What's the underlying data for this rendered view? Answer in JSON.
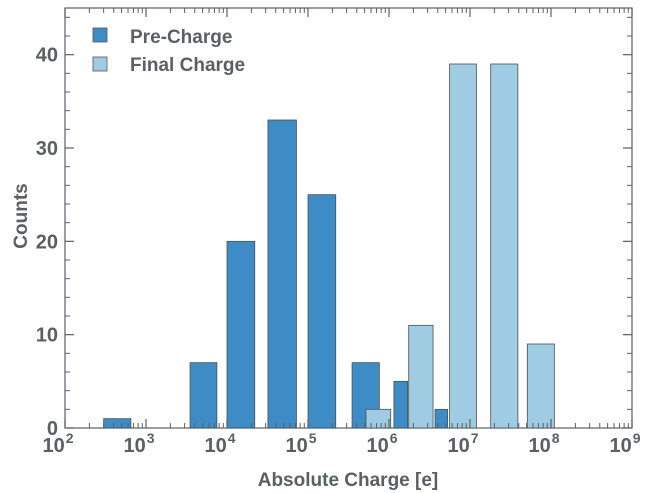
{
  "chart_data": {
    "type": "bar",
    "xscale": "log",
    "xlabel": "Absolute Charge [e]",
    "ylabel": "Counts",
    "xlim": [
      100,
      1000000000
    ],
    "ylim": [
      0,
      45
    ],
    "x_ticks": [
      {
        "base": "10",
        "exp": "2"
      },
      {
        "base": "10",
        "exp": "3"
      },
      {
        "base": "10",
        "exp": "4"
      },
      {
        "base": "10",
        "exp": "5"
      },
      {
        "base": "10",
        "exp": "6"
      },
      {
        "base": "10",
        "exp": "7"
      },
      {
        "base": "10",
        "exp": "8"
      },
      {
        "base": "10",
        "exp": "9"
      }
    ],
    "y_ticks": [
      "0",
      "10",
      "20",
      "30",
      "40"
    ],
    "y_tick_values": [
      0,
      10,
      20,
      30,
      40
    ],
    "legend_position": "top-left",
    "series": [
      {
        "name": "Pre-Charge",
        "color": "#3d8cc6",
        "bars": [
          {
            "x0": 300,
            "x1": 650,
            "value": 1
          },
          {
            "x0": 3500,
            "x1": 7500,
            "value": 7
          },
          {
            "x0": 10000,
            "x1": 22000,
            "value": 20
          },
          {
            "x0": 32000,
            "x1": 72000,
            "value": 33
          },
          {
            "x0": 100000,
            "x1": 220000,
            "value": 25
          },
          {
            "x0": 350000,
            "x1": 760000,
            "value": 7
          },
          {
            "x0": 1150000,
            "x1": 1700000,
            "value": 5
          },
          {
            "x0": 3700000,
            "x1": 5300000,
            "value": 2
          }
        ]
      },
      {
        "name": "Final Charge",
        "color": "#9fcbe3",
        "bars": [
          {
            "x0": 520000,
            "x1": 1050000,
            "value": 2
          },
          {
            "x0": 1750000,
            "x1": 3500000,
            "value": 11
          },
          {
            "x0": 5600000,
            "x1": 12000000,
            "value": 39
          },
          {
            "x0": 18000000,
            "x1": 39000000,
            "value": 39
          },
          {
            "x0": 51000000,
            "x1": 110000000,
            "value": 9
          }
        ]
      }
    ]
  }
}
